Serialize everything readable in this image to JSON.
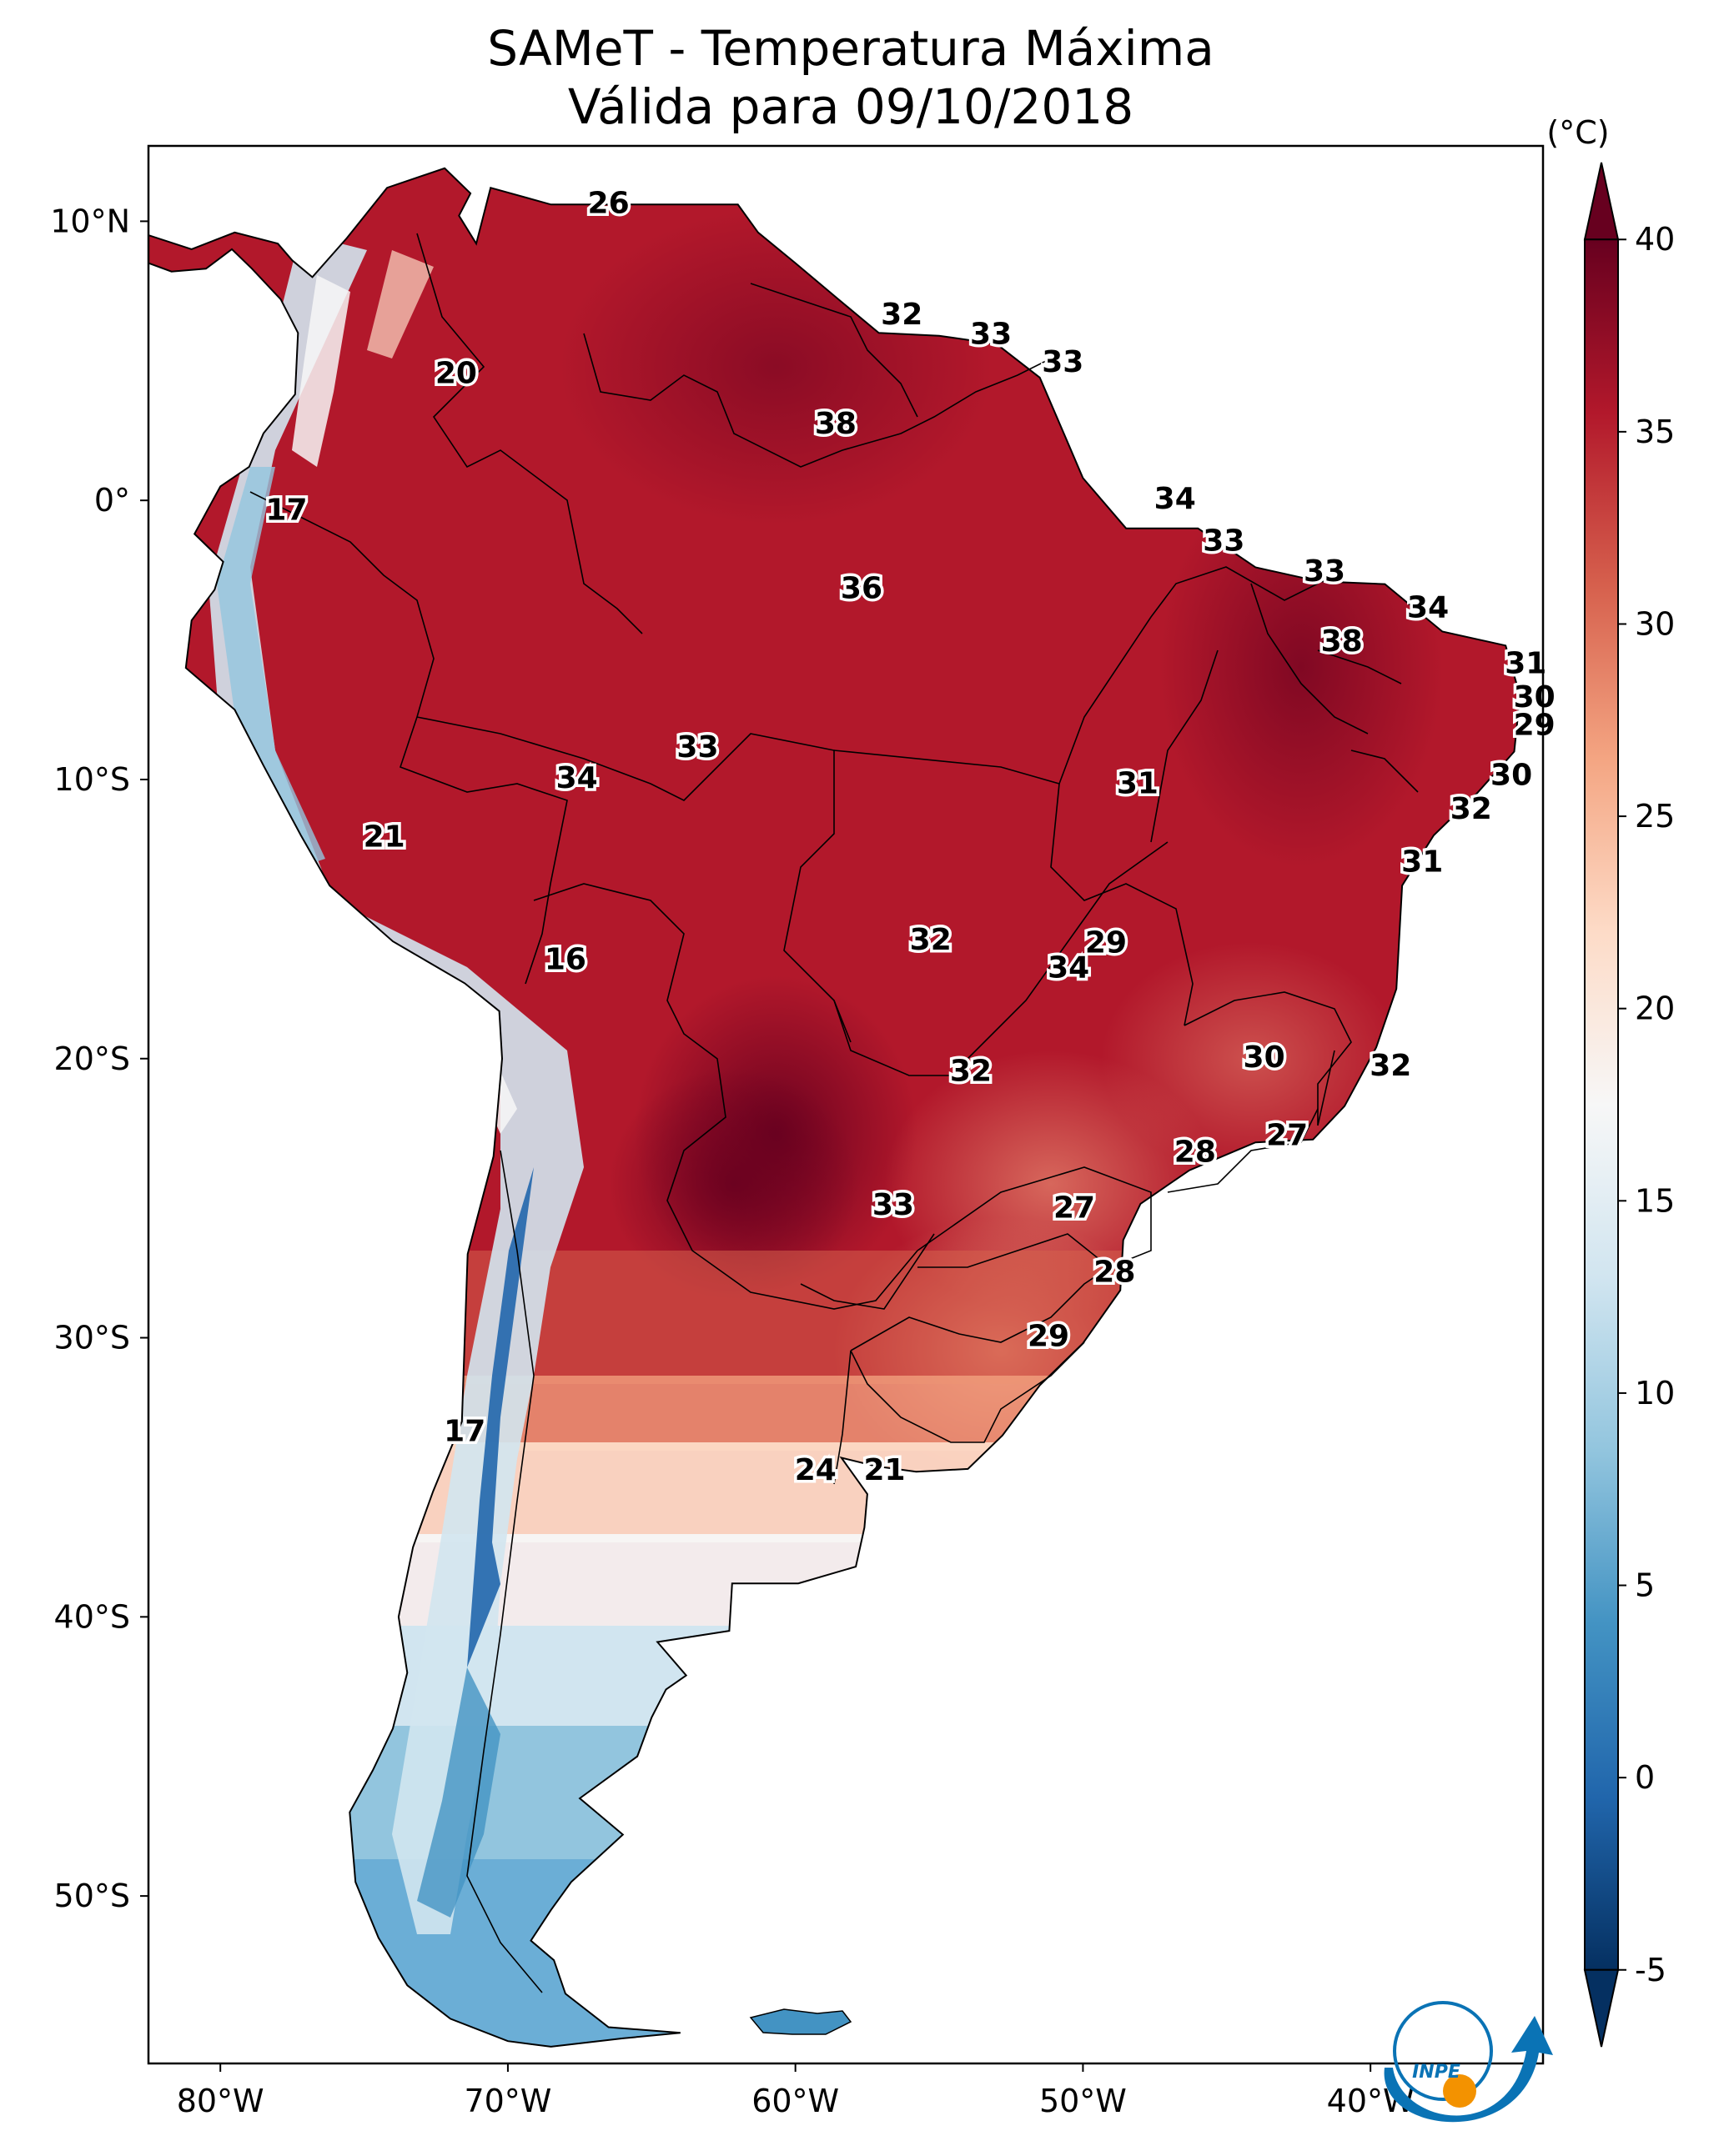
{
  "title": {
    "line1": "SAMeT - Temperatura Máxima",
    "line2": "Válida para 09/10/2018"
  },
  "map": {
    "lon_range": [
      -82.5,
      -34
    ],
    "lat_range": [
      -56,
      12.7
    ],
    "lon_ticks": [
      "80°W",
      "70°W",
      "60°W",
      "50°W",
      "40°W"
    ],
    "lat_ticks": [
      "10°N",
      "0°",
      "10°S",
      "20°S",
      "30°S",
      "40°S",
      "50°S"
    ],
    "labels": [
      {
        "lon": -66.5,
        "lat": 10.6,
        "text": "26"
      },
      {
        "lon": -56.3,
        "lat": 6.6,
        "text": "32"
      },
      {
        "lon": -53.2,
        "lat": 5.9,
        "text": "33"
      },
      {
        "lon": -50.7,
        "lat": 4.9,
        "text": "33"
      },
      {
        "lon": -71.8,
        "lat": 4.5,
        "text": "20"
      },
      {
        "lon": -58.6,
        "lat": 2.7,
        "text": "38"
      },
      {
        "lon": -46.8,
        "lat": 0.0,
        "text": "34"
      },
      {
        "lon": -77.7,
        "lat": -0.4,
        "text": "17"
      },
      {
        "lon": -45.1,
        "lat": -1.5,
        "text": "33"
      },
      {
        "lon": -57.7,
        "lat": -3.2,
        "text": "36"
      },
      {
        "lon": -41.6,
        "lat": -2.6,
        "text": "33"
      },
      {
        "lon": -38.0,
        "lat": -3.9,
        "text": "34"
      },
      {
        "lon": -41.0,
        "lat": -5.1,
        "text": "38"
      },
      {
        "lon": -34.6,
        "lat": -5.9,
        "text": "31"
      },
      {
        "lon": -34.3,
        "lat": -7.1,
        "text": "30"
      },
      {
        "lon": -34.3,
        "lat": -8.1,
        "text": "29"
      },
      {
        "lon": -63.4,
        "lat": -8.9,
        "text": "33"
      },
      {
        "lon": -67.6,
        "lat": -10.0,
        "text": "34"
      },
      {
        "lon": -48.1,
        "lat": -10.2,
        "text": "31"
      },
      {
        "lon": -35.1,
        "lat": -9.9,
        "text": "30"
      },
      {
        "lon": -36.5,
        "lat": -11.1,
        "text": "32"
      },
      {
        "lon": -74.3,
        "lat": -12.1,
        "text": "21"
      },
      {
        "lon": -38.2,
        "lat": -13.0,
        "text": "31"
      },
      {
        "lon": -55.3,
        "lat": -15.8,
        "text": "32"
      },
      {
        "lon": -49.2,
        "lat": -15.9,
        "text": "29"
      },
      {
        "lon": -50.5,
        "lat": -16.8,
        "text": "34"
      },
      {
        "lon": -68.0,
        "lat": -16.5,
        "text": "16"
      },
      {
        "lon": -43.7,
        "lat": -20.0,
        "text": "30"
      },
      {
        "lon": -39.3,
        "lat": -20.3,
        "text": "32"
      },
      {
        "lon": -53.9,
        "lat": -20.5,
        "text": "32"
      },
      {
        "lon": -42.9,
        "lat": -22.8,
        "text": "27"
      },
      {
        "lon": -46.1,
        "lat": -23.4,
        "text": "28"
      },
      {
        "lon": -56.6,
        "lat": -25.3,
        "text": "33"
      },
      {
        "lon": -50.3,
        "lat": -25.4,
        "text": "27"
      },
      {
        "lon": -48.9,
        "lat": -27.7,
        "text": "28"
      },
      {
        "lon": -51.2,
        "lat": -30.0,
        "text": "29"
      },
      {
        "lon": -71.5,
        "lat": -33.4,
        "text": "17"
      },
      {
        "lon": -59.3,
        "lat": -34.8,
        "text": "24"
      },
      {
        "lon": -56.9,
        "lat": -34.8,
        "text": "21"
      }
    ]
  },
  "colorbar": {
    "unit": "(°C)",
    "min": -7,
    "max": 42,
    "ticks": [
      "40",
      "35",
      "30",
      "25",
      "20",
      "15",
      "10",
      "5",
      "0",
      "-5"
    ],
    "tick_values": [
      40,
      35,
      30,
      25,
      20,
      15,
      10,
      5,
      0,
      -5
    ],
    "colors": [
      "#053061",
      "#2166ac",
      "#4393c3",
      "#92c5de",
      "#d1e5f0",
      "#f7f7f7",
      "#fddbc7",
      "#f4a582",
      "#d6604d",
      "#b2182b",
      "#67001f"
    ]
  },
  "logo": {
    "text": "INPE",
    "orange": "#f39200",
    "blue": "#0a73b5"
  }
}
